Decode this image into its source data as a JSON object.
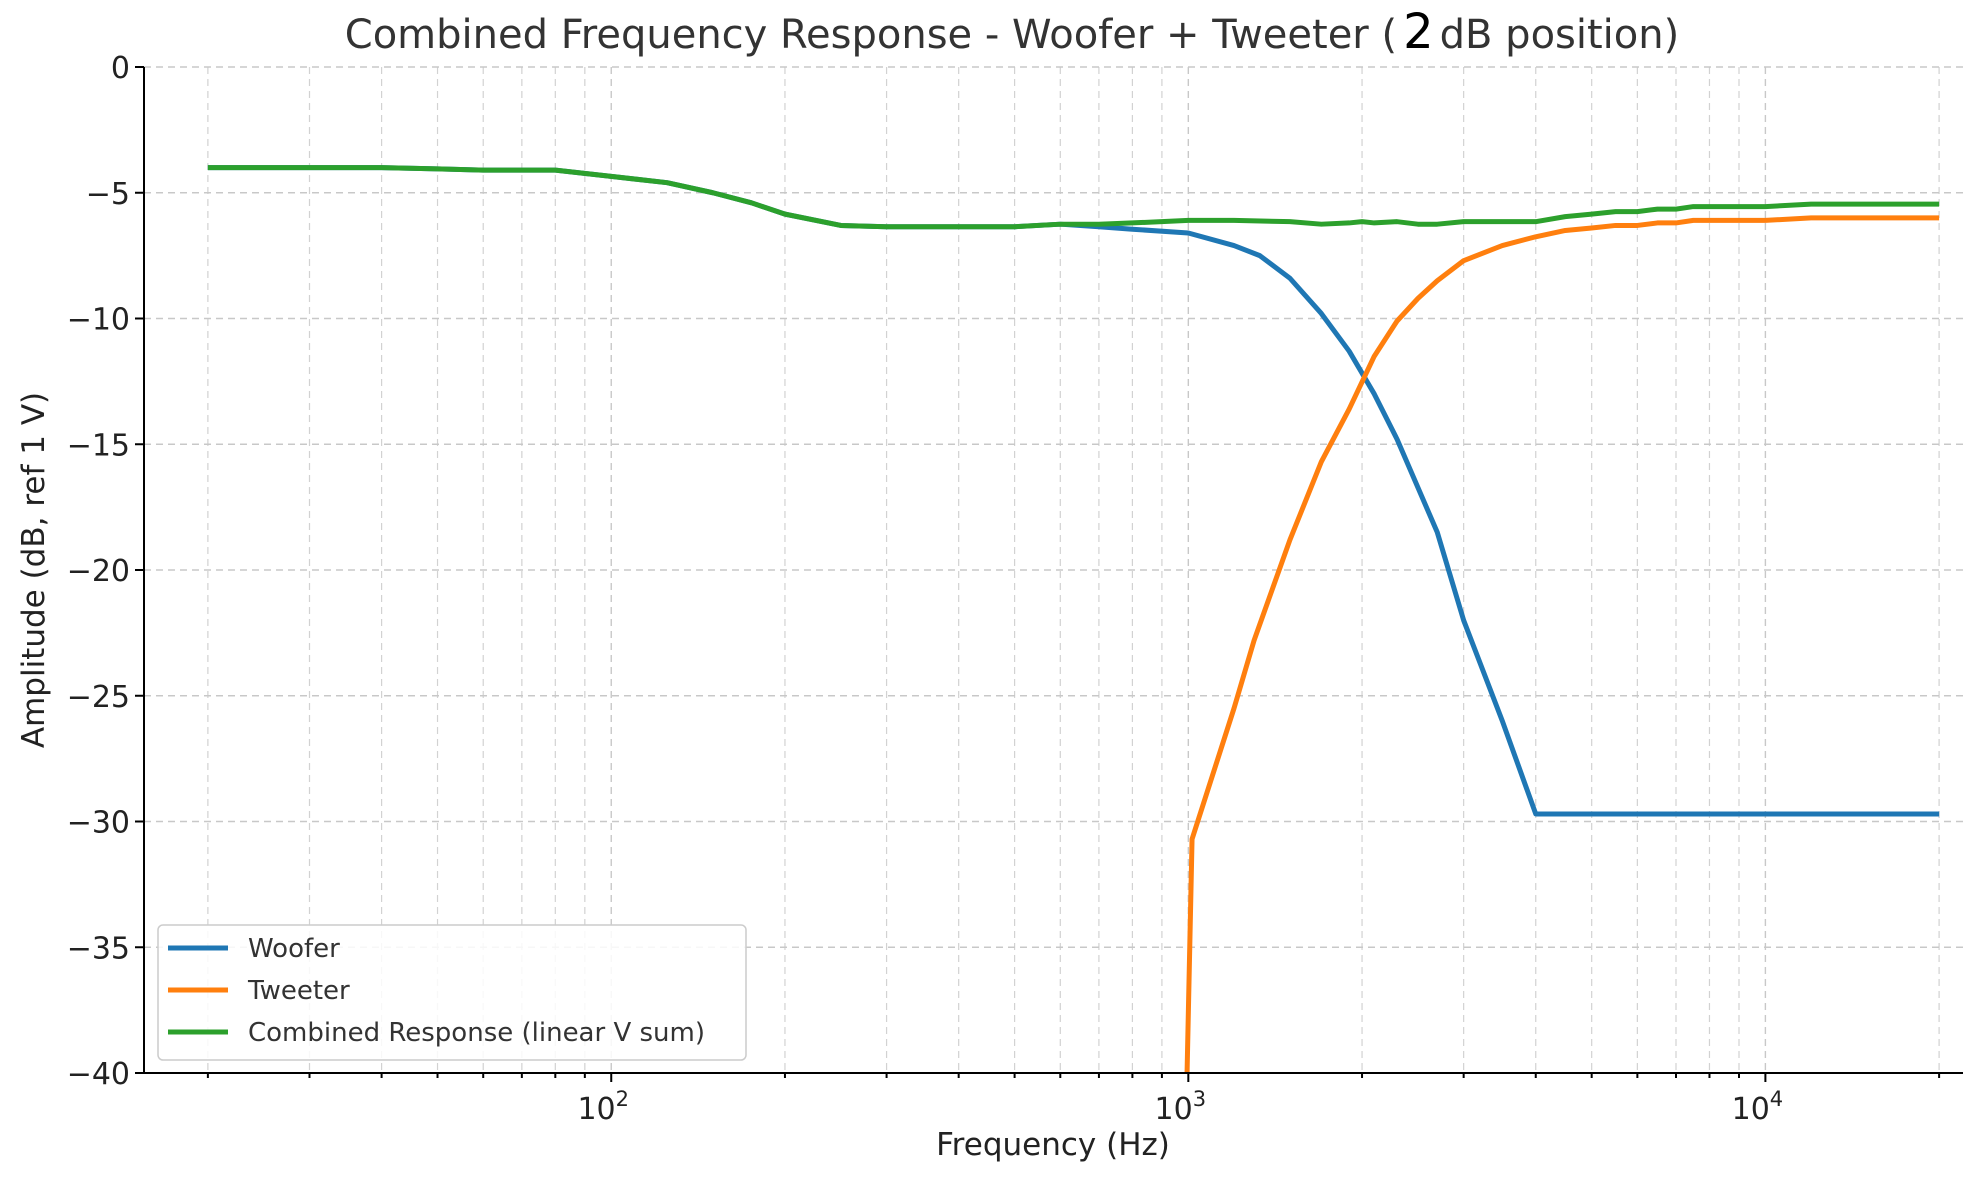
{
  "chart_data": {
    "type": "line",
    "title_prefix": "Combined Frequency Response - Woofer + Tweeter (",
    "title_value": "2",
    "title_suffix": "dB position)",
    "xlabel": "Frequency (Hz)",
    "ylabel": "Amplitude (dB, ref 1 V)",
    "x_scale": "log",
    "xlim": [
      15.5,
      22000
    ],
    "ylim": [
      -40,
      0
    ],
    "yticks": [
      0,
      -5,
      -10,
      -15,
      -20,
      -25,
      -30,
      -35,
      -40
    ],
    "ytick_labels": [
      "0",
      "−5",
      "−10",
      "−15",
      "−20",
      "−25",
      "−30",
      "−35",
      "−40"
    ],
    "xticks": [
      {
        "value": 100,
        "base": "10",
        "exp": "2"
      },
      {
        "value": 1000,
        "base": "10",
        "exp": "3"
      },
      {
        "value": 10000,
        "base": "10",
        "exp": "4"
      }
    ],
    "grid": true,
    "legend_position": "lower-left",
    "series": [
      {
        "name": "Woofer",
        "color": "#1f77b4",
        "points": [
          [
            20,
            -4.0
          ],
          [
            30,
            -4.0
          ],
          [
            40,
            -4.0
          ],
          [
            50,
            -4.05
          ],
          [
            60,
            -4.1
          ],
          [
            70,
            -4.1
          ],
          [
            80,
            -4.1
          ],
          [
            100,
            -4.35
          ],
          [
            125,
            -4.6
          ],
          [
            150,
            -5.0
          ],
          [
            175,
            -5.4
          ],
          [
            200,
            -5.85
          ],
          [
            250,
            -6.3
          ],
          [
            300,
            -6.35
          ],
          [
            400,
            -6.35
          ],
          [
            500,
            -6.35
          ],
          [
            600,
            -6.25
          ],
          [
            700,
            -6.35
          ],
          [
            800,
            -6.45
          ],
          [
            1000,
            -6.6
          ],
          [
            1200,
            -7.1
          ],
          [
            1330,
            -7.5
          ],
          [
            1500,
            -8.4
          ],
          [
            1700,
            -9.8
          ],
          [
            1900,
            -11.3
          ],
          [
            2100,
            -13.0
          ],
          [
            2300,
            -14.8
          ],
          [
            2700,
            -18.5
          ],
          [
            3000,
            -22.0
          ],
          [
            3500,
            -26.0
          ],
          [
            4000,
            -29.7
          ],
          [
            5000,
            -29.7
          ],
          [
            10000,
            -29.7
          ],
          [
            20000,
            -29.7
          ]
        ]
      },
      {
        "name": "Tweeter",
        "color": "#ff7f0e",
        "points": [
          [
            995,
            -40.0
          ],
          [
            1015,
            -30.7
          ],
          [
            1200,
            -25.5
          ],
          [
            1300,
            -22.8
          ],
          [
            1500,
            -18.8
          ],
          [
            1700,
            -15.7
          ],
          [
            1900,
            -13.6
          ],
          [
            2100,
            -11.5
          ],
          [
            2300,
            -10.1
          ],
          [
            2500,
            -9.2
          ],
          [
            2700,
            -8.5
          ],
          [
            3000,
            -7.7
          ],
          [
            3500,
            -7.1
          ],
          [
            4000,
            -6.75
          ],
          [
            4500,
            -6.5
          ],
          [
            5000,
            -6.4
          ],
          [
            5500,
            -6.3
          ],
          [
            6000,
            -6.3
          ],
          [
            6500,
            -6.2
          ],
          [
            7000,
            -6.2
          ],
          [
            7500,
            -6.1
          ],
          [
            8000,
            -6.1
          ],
          [
            9000,
            -6.1
          ],
          [
            10000,
            -6.1
          ],
          [
            12000,
            -6.0
          ],
          [
            15000,
            -6.0
          ],
          [
            20000,
            -6.0
          ]
        ]
      },
      {
        "name": "Combined Response (linear V sum)",
        "color": "#2ca02c",
        "points": [
          [
            20,
            -4.0
          ],
          [
            30,
            -4.0
          ],
          [
            40,
            -4.0
          ],
          [
            50,
            -4.05
          ],
          [
            60,
            -4.1
          ],
          [
            70,
            -4.1
          ],
          [
            80,
            -4.1
          ],
          [
            100,
            -4.35
          ],
          [
            125,
            -4.6
          ],
          [
            150,
            -5.0
          ],
          [
            175,
            -5.4
          ],
          [
            200,
            -5.85
          ],
          [
            250,
            -6.3
          ],
          [
            300,
            -6.35
          ],
          [
            400,
            -6.35
          ],
          [
            500,
            -6.35
          ],
          [
            600,
            -6.25
          ],
          [
            700,
            -6.25
          ],
          [
            800,
            -6.2
          ],
          [
            1000,
            -6.1
          ],
          [
            1200,
            -6.1
          ],
          [
            1500,
            -6.15
          ],
          [
            1700,
            -6.25
          ],
          [
            1900,
            -6.2
          ],
          [
            2000,
            -6.15
          ],
          [
            2100,
            -6.2
          ],
          [
            2300,
            -6.15
          ],
          [
            2500,
            -6.25
          ],
          [
            2700,
            -6.25
          ],
          [
            3000,
            -6.15
          ],
          [
            3500,
            -6.15
          ],
          [
            4000,
            -6.15
          ],
          [
            4500,
            -5.95
          ],
          [
            5000,
            -5.85
          ],
          [
            5500,
            -5.75
          ],
          [
            6000,
            -5.75
          ],
          [
            6500,
            -5.65
          ],
          [
            7000,
            -5.65
          ],
          [
            7500,
            -5.55
          ],
          [
            8000,
            -5.55
          ],
          [
            10000,
            -5.55
          ],
          [
            12000,
            -5.45
          ],
          [
            15000,
            -5.45
          ],
          [
            20000,
            -5.45
          ]
        ]
      }
    ]
  }
}
